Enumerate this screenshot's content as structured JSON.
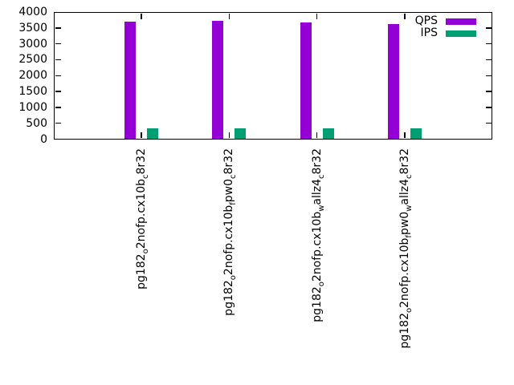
{
  "chart_data": {
    "type": "bar",
    "grid": false,
    "legend_position": "top-right-inside",
    "ylim": [
      0,
      4000
    ],
    "ytick_step": 500,
    "yticks": [
      0,
      500,
      1000,
      1500,
      2000,
      2500,
      3000,
      3500,
      4000
    ],
    "ytick_labels": [
      "0",
      "500",
      "1000",
      "1500",
      "2000",
      "2500",
      "3000",
      "3500",
      "4000"
    ],
    "categories": [
      {
        "parts": [
          {
            "text": "pg182"
          },
          {
            "text": "o",
            "subscript": true
          },
          {
            "text": "2nofp.cx10b"
          },
          {
            "text": "c",
            "subscript": true
          },
          {
            "text": "8r32"
          }
        ]
      },
      {
        "parts": [
          {
            "text": "pg182"
          },
          {
            "text": "o",
            "subscript": true
          },
          {
            "text": "2nofp.cx10b"
          },
          {
            "text": "f",
            "subscript": true
          },
          {
            "text": "pw0"
          },
          {
            "text": "c",
            "subscript": true
          },
          {
            "text": "8r32"
          }
        ]
      },
      {
        "parts": [
          {
            "text": "pg182"
          },
          {
            "text": "o",
            "subscript": true
          },
          {
            "text": "2nofp.cx10b"
          },
          {
            "text": "w",
            "subscript": true
          },
          {
            "text": "allz4"
          },
          {
            "text": "c",
            "subscript": true
          },
          {
            "text": "8r32"
          }
        ]
      },
      {
        "parts": [
          {
            "text": "pg182"
          },
          {
            "text": "o",
            "subscript": true
          },
          {
            "text": "2nofp.cx10b"
          },
          {
            "text": "f",
            "subscript": true
          },
          {
            "text": "pw0"
          },
          {
            "text": "w",
            "subscript": true
          },
          {
            "text": "allz4"
          },
          {
            "text": "c",
            "subscript": true
          },
          {
            "text": "8r32"
          }
        ]
      }
    ],
    "series": [
      {
        "name": "QPS",
        "color": "#9400d3",
        "values": [
          3690,
          3715,
          3680,
          3620
        ]
      },
      {
        "name": "IPS",
        "color": "#009e73",
        "values": [
          350,
          345,
          340,
          330
        ]
      }
    ]
  }
}
